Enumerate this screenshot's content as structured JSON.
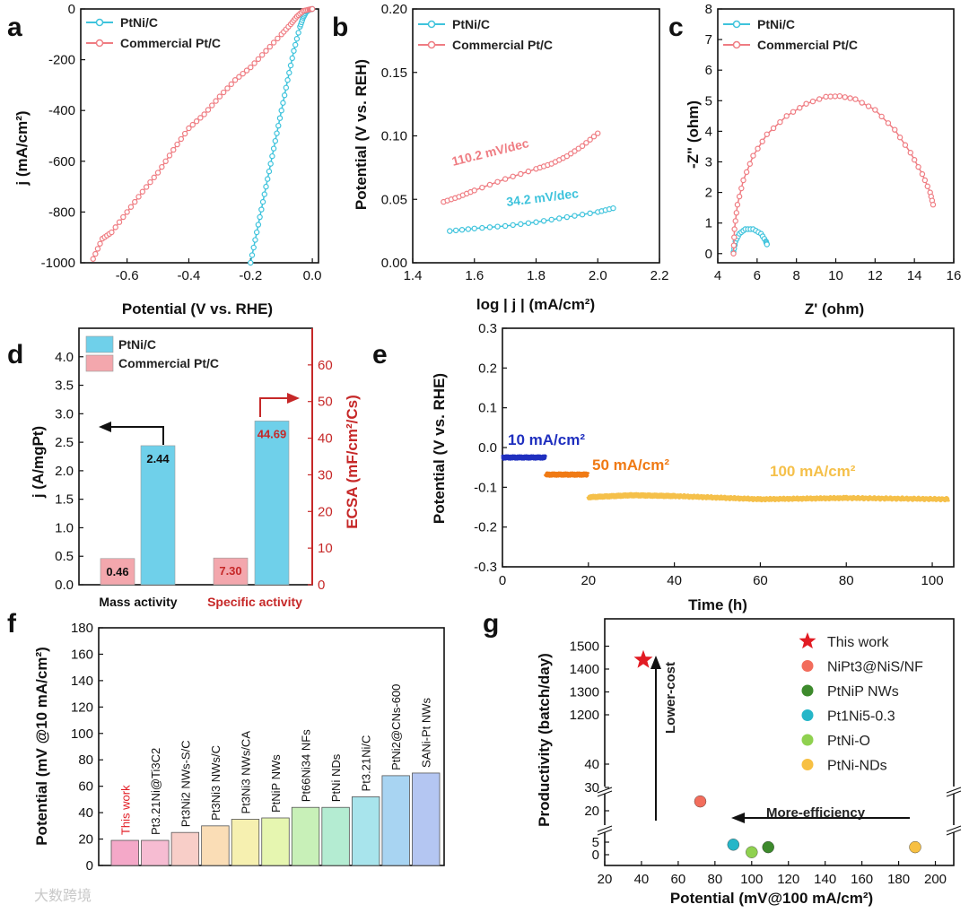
{
  "chart_data": [
    {
      "panel": "a",
      "type": "line",
      "xlabel": "Potential (V vs. RHE)",
      "ylabel": "j (mA/cm²)",
      "xlim": [
        -0.75,
        0.02
      ],
      "ylim": [
        -1000,
        0
      ],
      "xticks": [
        "-0.6",
        "-0.4",
        "-0.2",
        "0.0"
      ],
      "xtick_values": [
        -0.6,
        -0.4,
        -0.2,
        0.0
      ],
      "yticks": [
        "0",
        "-200",
        "-400",
        "-600",
        "-800",
        "-1000"
      ],
      "ytick_values": [
        0,
        -200,
        -400,
        -600,
        -800,
        -1000
      ],
      "series": [
        {
          "name": "PtNi/C",
          "color": "#3ec3dc",
          "x": [
            -0.2,
            -0.18,
            -0.16,
            -0.14,
            -0.12,
            -0.1,
            -0.08,
            -0.06,
            -0.04,
            -0.03,
            -0.02,
            -0.01,
            0.0
          ],
          "y": [
            -1000,
            -880,
            -760,
            -640,
            -520,
            -400,
            -280,
            -165,
            -70,
            -35,
            -12,
            -3,
            0
          ]
        },
        {
          "name": "Commercial Pt/C",
          "color": "#ef7c82",
          "x": [
            -0.71,
            -0.68,
            -0.65,
            -0.6,
            -0.55,
            -0.5,
            -0.45,
            -0.4,
            -0.35,
            -0.3,
            -0.25,
            -0.2,
            -0.15,
            -0.1,
            -0.07,
            -0.05,
            -0.03,
            -0.01,
            0.0
          ],
          "y": [
            -985,
            -905,
            -880,
            -800,
            -720,
            -645,
            -555,
            -470,
            -415,
            -345,
            -280,
            -230,
            -165,
            -100,
            -60,
            -30,
            -8,
            -2,
            0
          ]
        }
      ]
    },
    {
      "panel": "b",
      "type": "line",
      "xlabel": "log | j | (mA/cm²)",
      "ylabel": "Potential (V vs. REH)",
      "xlim": [
        1.4,
        2.2
      ],
      "ylim": [
        0.0,
        0.2
      ],
      "xticks": [
        "1.4",
        "1.6",
        "1.8",
        "2.0",
        "2.2"
      ],
      "xtick_values": [
        1.4,
        1.6,
        1.8,
        2.0,
        2.2
      ],
      "yticks": [
        "0.00",
        "0.05",
        "0.10",
        "0.15",
        "0.20"
      ],
      "ytick_values": [
        0,
        0.05,
        0.1,
        0.15,
        0.2
      ],
      "annotations": [
        {
          "text": "110.2 mV/dec",
          "color": "#ef7c82"
        },
        {
          "text": "34.2 mV/dec",
          "color": "#3ec3dc"
        }
      ],
      "series": [
        {
          "name": "PtNi/C",
          "color": "#3ec3dc",
          "x": [
            1.52,
            1.6,
            1.7,
            1.8,
            1.9,
            2.0,
            2.05
          ],
          "y": [
            0.025,
            0.027,
            0.029,
            0.032,
            0.036,
            0.04,
            0.043
          ]
        },
        {
          "name": "Commercial Pt/C",
          "color": "#ef7c82",
          "x": [
            1.5,
            1.55,
            1.6,
            1.7,
            1.8,
            1.85,
            1.9,
            1.95,
            2.0
          ],
          "y": [
            0.048,
            0.052,
            0.057,
            0.066,
            0.074,
            0.078,
            0.084,
            0.092,
            0.102
          ]
        }
      ]
    },
    {
      "panel": "c",
      "type": "line",
      "xlabel": "Z' (ohm)",
      "ylabel": "-Z\" (ohm)",
      "xlim": [
        4,
        16
      ],
      "ylim": [
        -0.3,
        8
      ],
      "xticks": [
        "4",
        "6",
        "8",
        "10",
        "12",
        "14",
        "16"
      ],
      "xtick_values": [
        4,
        6,
        8,
        10,
        12,
        14,
        16
      ],
      "yticks": [
        "0",
        "1",
        "2",
        "3",
        "4",
        "5",
        "6",
        "7",
        "8"
      ],
      "ytick_values": [
        0,
        1,
        2,
        3,
        4,
        5,
        6,
        7,
        8
      ],
      "series": [
        {
          "name": "PtNi/C",
          "color": "#3ec3dc",
          "x": [
            4.8,
            4.9,
            5.1,
            5.4,
            5.8,
            6.2,
            6.45,
            6.5
          ],
          "y": [
            0.05,
            0.4,
            0.65,
            0.8,
            0.8,
            0.65,
            0.4,
            0.3
          ]
        },
        {
          "name": "Commercial Pt/C",
          "color": "#ef7c82",
          "x": [
            4.8,
            4.85,
            5.0,
            5.3,
            5.8,
            6.5,
            7.5,
            8.5,
            9.5,
            10.2,
            11,
            12,
            13,
            13.8,
            14.4,
            14.8,
            14.95
          ],
          "y": [
            0.0,
            0.8,
            1.6,
            2.4,
            3.2,
            3.9,
            4.5,
            4.9,
            5.13,
            5.15,
            5.05,
            4.7,
            4.05,
            3.3,
            2.6,
            2.0,
            1.6
          ]
        }
      ]
    },
    {
      "panel": "d",
      "type": "bar",
      "categories": [
        "Mass activity",
        "Specific activity"
      ],
      "ylabel": "j (A/mgPt)",
      "ylabel_right": "ECSA (mF/cm²/Cs)",
      "ylim": [
        0,
        4.5
      ],
      "ylim_right": [
        0,
        70
      ],
      "yticks": [
        "0.0",
        "0.5",
        "1.0",
        "1.5",
        "2.0",
        "2.5",
        "3.0",
        "3.5",
        "4.0"
      ],
      "ytick_values": [
        0,
        0.5,
        1,
        1.5,
        2,
        2.5,
        3,
        3.5,
        4
      ],
      "yticks_right": [
        "0",
        "10",
        "20",
        "30",
        "40",
        "50",
        "60"
      ],
      "ytick_values_right": [
        0,
        10,
        20,
        30,
        40,
        50,
        60
      ],
      "series": [
        {
          "name": "PtNi/C",
          "color": "#6fd0ea",
          "values": [
            2.44,
            44.69
          ],
          "labels": [
            "2.44",
            "44.69"
          ]
        },
        {
          "name": "Commercial Pt/C",
          "color": "#f3a7ad",
          "values": [
            0.46,
            7.3
          ],
          "labels": [
            "0.46",
            "7.30"
          ]
        }
      ]
    },
    {
      "panel": "e",
      "type": "line",
      "xlabel": "Time (h)",
      "ylabel": "Potential (V vs. RHE)",
      "xlim": [
        0,
        105
      ],
      "ylim": [
        -0.3,
        0.3
      ],
      "xticks": [
        "0",
        "20",
        "40",
        "60",
        "80",
        "100"
      ],
      "xtick_values": [
        0,
        20,
        40,
        60,
        80,
        100
      ],
      "yticks": [
        "0.3",
        "0.2",
        "0.1",
        "0.0",
        "-0.1",
        "-0.2",
        "-0.3"
      ],
      "ytick_values": [
        0.3,
        0.2,
        0.1,
        0,
        -0.1,
        -0.2,
        -0.3
      ],
      "series": [
        {
          "name": "10 mA/cm²",
          "color": "#1f2fbf",
          "x": [
            0,
            10
          ],
          "y": [
            -0.025,
            -0.025
          ]
        },
        {
          "name": "50 mA/cm²",
          "color": "#f07a14",
          "x": [
            10,
            20
          ],
          "y": [
            -0.068,
            -0.068
          ]
        },
        {
          "name": "100 mA/cm²",
          "color": "#f5c04a",
          "x": [
            20,
            30,
            40,
            60,
            80,
            104
          ],
          "y": [
            -0.125,
            -0.12,
            -0.122,
            -0.13,
            -0.127,
            -0.13
          ]
        }
      ]
    },
    {
      "panel": "f",
      "type": "bar",
      "ylabel": "Potential (mV @10 mA/cm²)",
      "ylim": [
        0,
        180
      ],
      "yticks": [
        "0",
        "20",
        "40",
        "60",
        "80",
        "100",
        "120",
        "140",
        "160",
        "180"
      ],
      "ytick_values": [
        0,
        20,
        40,
        60,
        80,
        100,
        120,
        140,
        160,
        180
      ],
      "categories": [
        "This work",
        "Pt3.21Ni@Ti3C2",
        "Pt3Ni2 NWs-S/C",
        "Pt3Ni3 NWs/C",
        "Pt3Ni3 NWs/CA",
        "PtNiP NWs",
        "Pt66Ni34 NFs",
        "PtNi NDs",
        "Pt3.21Ni/C",
        "PtNi2@CNs-600",
        "SANi-Pt NWs"
      ],
      "values": [
        19,
        19,
        25,
        30,
        35,
        36,
        44,
        44,
        52,
        68,
        70
      ],
      "colors": [
        "#f4a8c8",
        "#f6bcd2",
        "#f8cec8",
        "#faddb6",
        "#f6f0b0",
        "#e6f6b0",
        "#c8f0b8",
        "#b4ecd2",
        "#a8e4ec",
        "#a8d4f2",
        "#b4c6f2"
      ]
    },
    {
      "panel": "g",
      "type": "scatter",
      "xlabel": "Potential (mV@100 mA/cm²)",
      "ylabel": "Productivity (batch/day)",
      "xlim": [
        20,
        210
      ],
      "xticks": [
        "20",
        "40",
        "60",
        "80",
        "100",
        "120",
        "140",
        "160",
        "180",
        "200"
      ],
      "xtick_values": [
        20,
        40,
        60,
        80,
        100,
        120,
        140,
        160,
        180,
        200
      ],
      "yticks": [
        "0",
        "5",
        "20",
        "30",
        "40",
        "1200",
        "1300",
        "1400",
        "1500"
      ],
      "ytick_values": [
        0,
        5,
        20,
        30,
        40,
        1200,
        1300,
        1400,
        1500
      ],
      "annotations": [
        {
          "text": "Lower-cost"
        },
        {
          "text": "More-efficiency"
        }
      ],
      "points": [
        {
          "name": "This work",
          "x": 41,
          "y": 1440,
          "color": "#e21b23",
          "marker": "star"
        },
        {
          "name": "NiPt3@NiS/NF",
          "x": 72,
          "y": 24,
          "color": "#f26d5c",
          "marker": "circle"
        },
        {
          "name": "PtNiP NWs",
          "x": 109,
          "y": 3,
          "color": "#3d8a2c",
          "marker": "circle"
        },
        {
          "name": "Pt1Ni5-0.3",
          "x": 90,
          "y": 4,
          "color": "#25b6c8",
          "marker": "circle"
        },
        {
          "name": "PtNi-O",
          "x": 100,
          "y": 1,
          "color": "#8fd14f",
          "marker": "circle"
        },
        {
          "name": "PtNi-NDs",
          "x": 189,
          "y": 3,
          "color": "#f7c043",
          "marker": "circle"
        }
      ]
    }
  ],
  "labels": {
    "a": "a",
    "b": "b",
    "c": "c",
    "d": "d",
    "e": "e",
    "f": "f",
    "g": "g",
    "legend_ptni": "PtNi/C",
    "legend_ptc": "Commercial Pt/C",
    "a_xlabel": "Potential (V vs. RHE)",
    "a_ylabel": "j (mA/cm²)",
    "b_xlabel": "log | j | (mA/cm²)",
    "b_ylabel": "Potential (V vs. REH)",
    "b_ann_pt": "110.2 mV/dec",
    "b_ann_ptni": "34.2 mV/dec",
    "c_xlabel": "Z' (ohm)",
    "c_ylabel": "-Z\" (ohm)",
    "d_ylabel": "j (A/mgPt)",
    "d_ylabel_right": "ECSA (mF/cm²/Cs)",
    "d_cat1": "Mass activity",
    "d_cat2": "Specific activity",
    "e_xlabel": "Time (h)",
    "e_ylabel": "Potential (V vs. RHE)",
    "e_ann1": "10 mA/cm²",
    "e_ann2": "50 mA/cm²",
    "e_ann3": "100 mA/cm²",
    "f_ylabel": "Potential (mV @10 mA/cm²)",
    "g_xlabel": "Potential (mV@100 mA/cm²)",
    "g_ylabel": "Productivity (batch/day)",
    "g_ann_cost": "Lower-cost",
    "g_ann_eff": "More-efficiency",
    "watermark": "大数跨境"
  }
}
